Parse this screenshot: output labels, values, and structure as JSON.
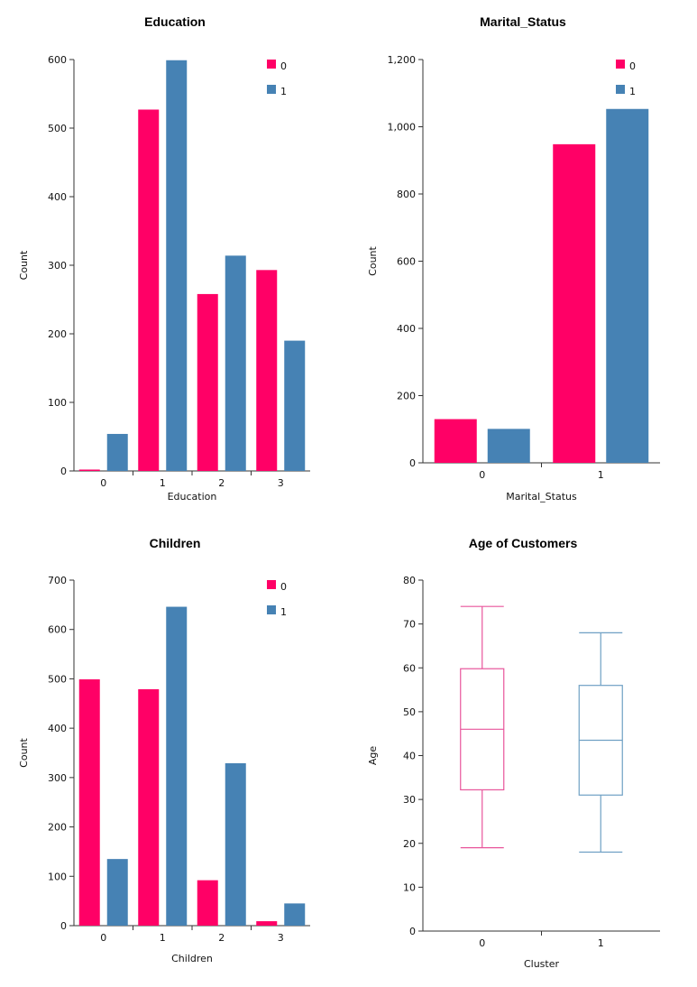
{
  "colors": {
    "cluster0": "#ff0066",
    "cluster1": "#4682b4",
    "box0": "#e8559b",
    "box1": "#6fa0c4",
    "axis": "#333333"
  },
  "chart_data": [
    {
      "type": "bar",
      "title": "Education",
      "xlabel": "Education",
      "ylabel": "Count",
      "categories": [
        "0",
        "1",
        "2",
        "3"
      ],
      "series": [
        {
          "name": "0",
          "values": [
            2,
            527,
            258,
            293
          ]
        },
        {
          "name": "1",
          "values": [
            54,
            599,
            314,
            190
          ]
        }
      ],
      "ylim": [
        0,
        600
      ],
      "yticks": [
        "0",
        "100",
        "200",
        "300",
        "400",
        "500",
        "600"
      ],
      "legend": "top-right",
      "grid": false
    },
    {
      "type": "bar",
      "title": "Marital_Status",
      "xlabel": "Marital_Status",
      "ylabel": "Count",
      "categories": [
        "0",
        "1"
      ],
      "series": [
        {
          "name": "0",
          "values": [
            130,
            948
          ]
        },
        {
          "name": "1",
          "values": [
            101,
            1053
          ]
        }
      ],
      "ylim": [
        0,
        1200
      ],
      "yticks": [
        "0",
        "200",
        "400",
        "600",
        "800",
        "1,000",
        "1,200"
      ],
      "legend": "top-right",
      "grid": false
    },
    {
      "type": "bar",
      "title": "Children",
      "xlabel": "Children",
      "ylabel": "Count",
      "categories": [
        "0",
        "1",
        "2",
        "3"
      ],
      "series": [
        {
          "name": "0",
          "values": [
            499,
            479,
            92,
            9
          ]
        },
        {
          "name": "1",
          "values": [
            135,
            646,
            329,
            45
          ]
        }
      ],
      "ylim": [
        0,
        700
      ],
      "yticks": [
        "0",
        "100",
        "200",
        "300",
        "400",
        "500",
        "600",
        "700"
      ],
      "legend": "top-right",
      "grid": false
    },
    {
      "type": "box",
      "title": "Age of Customers",
      "xlabel": "Cluster",
      "ylabel": "Age",
      "categories": [
        "0",
        "1"
      ],
      "boxes": [
        {
          "min": 19,
          "q1": 32.2,
          "median": 46,
          "q3": 59.8,
          "max": 74
        },
        {
          "min": 18,
          "q1": 31,
          "median": 43.5,
          "q3": 56,
          "max": 68
        }
      ],
      "ylim": [
        0,
        80
      ],
      "yticks": [
        "0",
        "10",
        "20",
        "30",
        "40",
        "50",
        "60",
        "70",
        "80"
      ],
      "grid": false
    }
  ]
}
